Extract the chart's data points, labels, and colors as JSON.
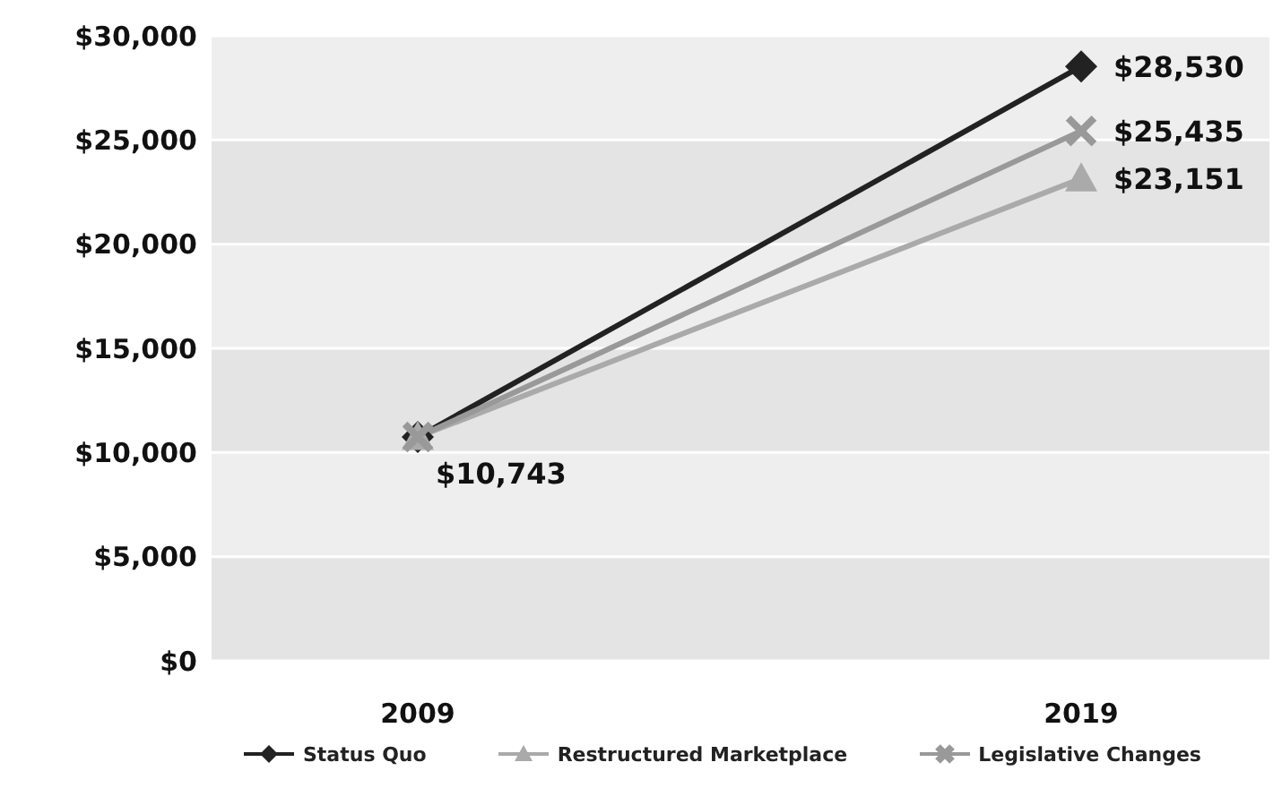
{
  "chart_data": {
    "type": "line",
    "categories": [
      "2009",
      "2019"
    ],
    "series": [
      {
        "name": "Status Quo",
        "color": "#222222",
        "marker": "diamond",
        "values": [
          10743,
          28530
        ],
        "value_labels": [
          "$10,743",
          "$28,530"
        ]
      },
      {
        "name": "Restructured Marketplace",
        "color": "#aaaaaa",
        "marker": "triangle",
        "values": [
          10743,
          23151
        ],
        "value_labels": [
          null,
          "$23,151"
        ]
      },
      {
        "name": "Legislative Changes",
        "color": "#999999",
        "marker": "cross",
        "values": [
          10743,
          25435
        ],
        "value_labels": [
          null,
          "$25,435"
        ]
      }
    ],
    "ylim": [
      0,
      30000
    ],
    "yticks": [
      {
        "value": 0,
        "label": "$0"
      },
      {
        "value": 5000,
        "label": "$5,000"
      },
      {
        "value": 10000,
        "label": "$10,000"
      },
      {
        "value": 15000,
        "label": "$15,000"
      },
      {
        "value": 20000,
        "label": "$20,000"
      },
      {
        "value": 25000,
        "label": "$25,000"
      },
      {
        "value": 30000,
        "label": "$30,000"
      }
    ],
    "grid": "y",
    "legend": "bottom"
  }
}
